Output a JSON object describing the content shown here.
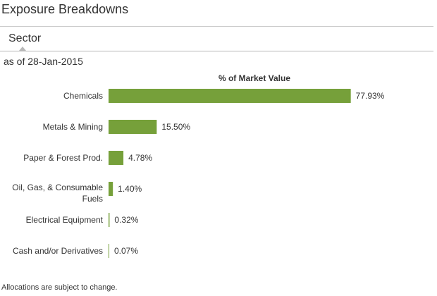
{
  "page": {
    "title": "Exposure Breakdowns",
    "tab_label": "Sector",
    "as_of": "as of 28-Jan-2015",
    "footnote": "Allocations are subject to change."
  },
  "colors": {
    "bar": "#76a03a",
    "text": "#333333",
    "rule": "#cccccc"
  },
  "chart_data": {
    "type": "bar",
    "orientation": "horizontal",
    "title": "% of Market Value",
    "categories": [
      "Chemicals",
      "Metals & Mining",
      "Paper & Forest Prod.",
      "Oil, Gas, & Consumable Fuels",
      "Electrical Equipment",
      "Cash and/or Derivatives"
    ],
    "values": [
      77.93,
      15.5,
      4.78,
      1.4,
      0.32,
      0.07
    ],
    "value_labels": [
      "77.93%",
      "15.50%",
      "4.78%",
      "1.40%",
      "0.32%",
      "0.07%"
    ],
    "category_lines": [
      [
        "Chemicals"
      ],
      [
        "Metals & Mining"
      ],
      [
        "Paper & Forest Prod."
      ],
      [
        "Oil, Gas, & Consumable",
        "Fuels"
      ],
      [
        "Electrical Equipment"
      ],
      [
        "Cash and/or Derivatives"
      ]
    ],
    "xlim": [
      0,
      100
    ],
    "grid": false,
    "legend": "none"
  }
}
